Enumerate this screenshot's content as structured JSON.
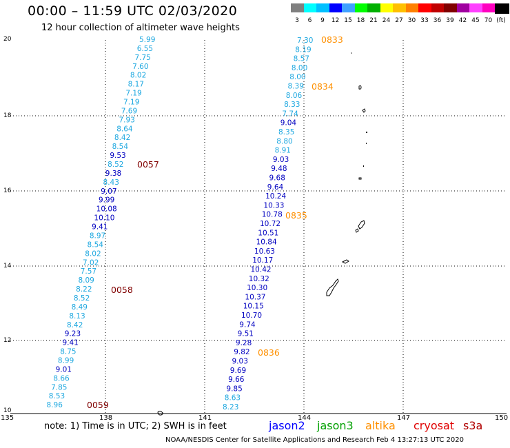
{
  "header": {
    "title": "00:00 – 11:59 UTC 02/03/2020",
    "subtitle": "12 hour collection of altimeter wave heights"
  },
  "colorbar": {
    "swatches": [
      "#808080",
      "#00ffff",
      "#00c0ff",
      "#0000ff",
      "#40a0ff",
      "#00ff00",
      "#00b000",
      "#ffff00",
      "#ffc000",
      "#ff8000",
      "#ff0000",
      "#c00000",
      "#800000",
      "#a000a0",
      "#ff40ff",
      "#ff00c0",
      "#000000"
    ],
    "ticks": [
      "3",
      "6",
      "9",
      "12",
      "15",
      "18",
      "21",
      "24",
      "27",
      "30",
      "33",
      "36",
      "39",
      "42",
      "45",
      "70",
      "(ft)"
    ]
  },
  "axes": {
    "lat_labels": [
      "20",
      "18",
      "16",
      "14",
      "12",
      "10"
    ],
    "lon_labels": [
      "135",
      "138",
      "141",
      "144",
      "147",
      "150"
    ]
  },
  "colors": {
    "light": "#1ea8e0",
    "blue": "#0000c0",
    "time_red": "#800000",
    "time_orange": "#ff9000"
  },
  "track1": {
    "values": [
      {
        "v": "5.99",
        "c": "light"
      },
      {
        "v": "6.55",
        "c": "light"
      },
      {
        "v": "7.75",
        "c": "light"
      },
      {
        "v": "7.60",
        "c": "light"
      },
      {
        "v": "8.02",
        "c": "light"
      },
      {
        "v": "8.17",
        "c": "light"
      },
      {
        "v": "7.19",
        "c": "light"
      },
      {
        "v": "7.19",
        "c": "light"
      },
      {
        "v": "7.69",
        "c": "light"
      },
      {
        "v": "7.93",
        "c": "light"
      },
      {
        "v": "8.64",
        "c": "light"
      },
      {
        "v": "8.42",
        "c": "light"
      },
      {
        "v": "8.54",
        "c": "light"
      },
      {
        "v": "9.53",
        "c": "blue"
      },
      {
        "v": "8.52",
        "c": "light"
      },
      {
        "v": "9.38",
        "c": "blue"
      },
      {
        "v": "8.43",
        "c": "light"
      },
      {
        "v": "9.07",
        "c": "blue"
      },
      {
        "v": "9.99",
        "c": "blue"
      },
      {
        "v": "10.08",
        "c": "blue"
      },
      {
        "v": "10.10",
        "c": "blue"
      },
      {
        "v": "9.41",
        "c": "blue"
      },
      {
        "v": "8.97",
        "c": "light"
      },
      {
        "v": "8.54",
        "c": "light"
      },
      {
        "v": "8.02",
        "c": "light"
      },
      {
        "v": "7.02",
        "c": "light"
      },
      {
        "v": "7.57",
        "c": "light"
      },
      {
        "v": "8.09",
        "c": "light"
      },
      {
        "v": "8.22",
        "c": "light"
      },
      {
        "v": "8.52",
        "c": "light"
      },
      {
        "v": "8.49",
        "c": "light"
      },
      {
        "v": "8.13",
        "c": "light"
      },
      {
        "v": "8.42",
        "c": "light"
      },
      {
        "v": "9.23",
        "c": "blue"
      },
      {
        "v": "9.41",
        "c": "blue"
      },
      {
        "v": "8.75",
        "c": "light"
      },
      {
        "v": "8.99",
        "c": "light"
      },
      {
        "v": "9.01",
        "c": "blue"
      },
      {
        "v": "8.66",
        "c": "light"
      },
      {
        "v": "7.85",
        "c": "light"
      },
      {
        "v": "8.53",
        "c": "light"
      },
      {
        "v": "8.96",
        "c": "light"
      }
    ],
    "times": [
      "0057",
      "0058",
      "0059"
    ]
  },
  "track2": {
    "values": [
      {
        "v": "7.30",
        "c": "light"
      },
      {
        "v": "8.19",
        "c": "light"
      },
      {
        "v": "8.57",
        "c": "light"
      },
      {
        "v": "8.00",
        "c": "light"
      },
      {
        "v": "8.00",
        "c": "light"
      },
      {
        "v": "8.39",
        "c": "light"
      },
      {
        "v": "8.06",
        "c": "light"
      },
      {
        "v": "8.33",
        "c": "light"
      },
      {
        "v": "7.74",
        "c": "light"
      },
      {
        "v": "9.04",
        "c": "blue"
      },
      {
        "v": "8.35",
        "c": "light"
      },
      {
        "v": "8.80",
        "c": "light"
      },
      {
        "v": "8.91",
        "c": "light"
      },
      {
        "v": "9.03",
        "c": "blue"
      },
      {
        "v": "9.48",
        "c": "blue"
      },
      {
        "v": "9.68",
        "c": "blue"
      },
      {
        "v": "9.64",
        "c": "blue"
      },
      {
        "v": "10.24",
        "c": "blue"
      },
      {
        "v": "10.33",
        "c": "blue"
      },
      {
        "v": "10.78",
        "c": "blue"
      },
      {
        "v": "10.72",
        "c": "blue"
      },
      {
        "v": "10.51",
        "c": "blue"
      },
      {
        "v": "10.84",
        "c": "blue"
      },
      {
        "v": "10.63",
        "c": "blue"
      },
      {
        "v": "10.17",
        "c": "blue"
      },
      {
        "v": "10.42",
        "c": "blue"
      },
      {
        "v": "10.32",
        "c": "blue"
      },
      {
        "v": "10.30",
        "c": "blue"
      },
      {
        "v": "10.37",
        "c": "blue"
      },
      {
        "v": "10.15",
        "c": "blue"
      },
      {
        "v": "10.70",
        "c": "blue"
      },
      {
        "v": "9.74",
        "c": "blue"
      },
      {
        "v": "9.51",
        "c": "blue"
      },
      {
        "v": "9.28",
        "c": "blue"
      },
      {
        "v": "9.82",
        "c": "blue"
      },
      {
        "v": "9.03",
        "c": "blue"
      },
      {
        "v": "9.69",
        "c": "blue"
      },
      {
        "v": "9.66",
        "c": "blue"
      },
      {
        "v": "9.85",
        "c": "blue"
      },
      {
        "v": "8.63",
        "c": "light"
      },
      {
        "v": "8.23",
        "c": "light"
      }
    ],
    "times": [
      "0833",
      "0834",
      "0835",
      "0836"
    ]
  },
  "note": "note:  1) Time is in UTC;  2) SWH is in feet",
  "legend": [
    {
      "label": "jason2",
      "color": "#0000ff"
    },
    {
      "label": "jason3",
      "color": "#00a000"
    },
    {
      "label": "altika",
      "color": "#ff9000"
    },
    {
      "label": "cryosat",
      "color": "#e00000"
    },
    {
      "label": "s3a",
      "color": "#b00000"
    }
  ],
  "credit": "NOAA/NESDIS Center for Satellite Applications and Research     Feb  4 13:27:13 UTC 2020"
}
